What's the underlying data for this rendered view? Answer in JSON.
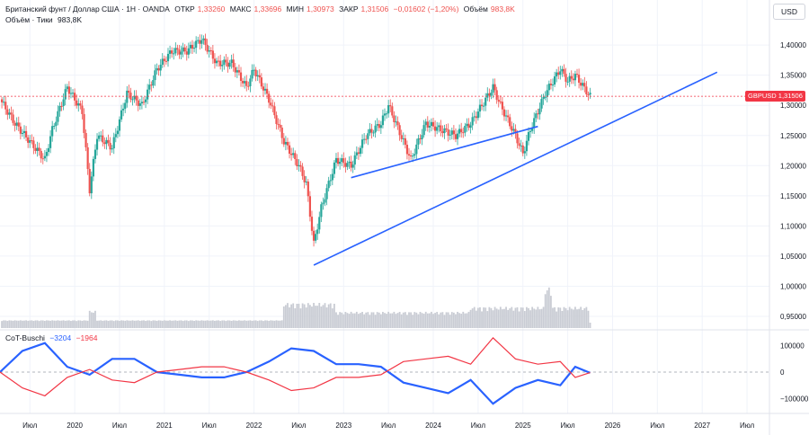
{
  "header": {
    "symbol": "Британский фунт / Доллар США · 1Н · OANDA",
    "open_label": "ОТКР",
    "open": "1,33260",
    "high_label": "МАКС",
    "high": "1,33696",
    "low_label": "МИН",
    "low": "1,30973",
    "close_label": "ЗАКР",
    "close": "1,31506",
    "change": "−0,01602 (−1,20%)",
    "volume_label": "Объём",
    "volume": "983,8K"
  },
  "volume_legend": {
    "label": "Объём · Тики",
    "value": "983,8K"
  },
  "cot_legend": {
    "label": "CoT-Buschi",
    "v1": "−3204",
    "v2": "−1964"
  },
  "currency_button": "USD",
  "price_tag": {
    "symbol": "GBPUSD",
    "value": "1,31506"
  },
  "colors": {
    "up": "#26a69a",
    "down": "#ef5350",
    "trendline": "#2962ff",
    "cot_blue": "#2962ff",
    "cot_red": "#f23645",
    "volume": "#c9ccd4"
  },
  "chart_data": [
    {
      "type": "candlestick",
      "title": "Британский фунт / Доллар США · 1Н · OANDA",
      "y_axis_ticks": [
        "1,40000",
        "1,35000",
        "1,30000",
        "1,25000",
        "1,20000",
        "1,15000",
        "1,10000",
        "1,05000",
        "1,00000",
        "0,95000"
      ],
      "ylim": [
        0.95,
        1.43
      ],
      "x_axis_ticks": [
        "Июл",
        "2020",
        "Июл",
        "2021",
        "Июл",
        "2022",
        "Июл",
        "2023",
        "Июл",
        "2024",
        "Июл",
        "2025",
        "Июл",
        "2026",
        "Июл",
        "2027",
        "Июл"
      ],
      "xlim": [
        "2019-03",
        "2027-10"
      ],
      "close_path": [
        [
          "2019-03",
          1.31
        ],
        [
          "2019-05",
          1.27
        ],
        [
          "2019-07",
          1.24
        ],
        [
          "2019-09",
          1.21
        ],
        [
          "2019-10",
          1.26
        ],
        [
          "2019-12",
          1.33
        ],
        [
          "2020-02",
          1.29
        ],
        [
          "2020-03",
          1.16
        ],
        [
          "2020-04",
          1.25
        ],
        [
          "2020-06",
          1.23
        ],
        [
          "2020-08",
          1.32
        ],
        [
          "2020-10",
          1.3
        ],
        [
          "2020-12",
          1.36
        ],
        [
          "2021-02",
          1.39
        ],
        [
          "2021-04",
          1.39
        ],
        [
          "2021-06",
          1.41
        ],
        [
          "2021-08",
          1.37
        ],
        [
          "2021-10",
          1.37
        ],
        [
          "2021-12",
          1.33
        ],
        [
          "2022-01",
          1.36
        ],
        [
          "2022-03",
          1.31
        ],
        [
          "2022-05",
          1.24
        ],
        [
          "2022-07",
          1.2
        ],
        [
          "2022-08",
          1.17
        ],
        [
          "2022-09",
          1.07
        ],
        [
          "2022-10",
          1.13
        ],
        [
          "2022-12",
          1.21
        ],
        [
          "2023-02",
          1.2
        ],
        [
          "2023-04",
          1.25
        ],
        [
          "2023-06",
          1.27
        ],
        [
          "2023-07",
          1.3
        ],
        [
          "2023-08",
          1.27
        ],
        [
          "2023-10",
          1.21
        ],
        [
          "2023-12",
          1.27
        ],
        [
          "2024-02",
          1.26
        ],
        [
          "2024-04",
          1.25
        ],
        [
          "2024-06",
          1.27
        ],
        [
          "2024-07",
          1.29
        ],
        [
          "2024-09",
          1.33
        ],
        [
          "2024-10",
          1.3
        ],
        [
          "2024-12",
          1.25
        ],
        [
          "2025-01",
          1.22
        ],
        [
          "2025-02",
          1.26
        ],
        [
          "2025-04",
          1.32
        ],
        [
          "2025-06",
          1.36
        ],
        [
          "2025-07",
          1.34
        ],
        [
          "2025-08",
          1.35
        ],
        [
          "2025-10",
          1.315
        ]
      ],
      "trendlines": [
        {
          "from": [
            "2023-02",
            1.18
          ],
          "to": [
            "2025-03",
            1.265
          ]
        },
        {
          "from": [
            "2022-09",
            1.035
          ],
          "to": [
            "2027-03",
            1.355
          ]
        }
      ],
      "last_price": 1.31506
    },
    {
      "type": "bar",
      "title": "Объём · Тики",
      "note": "volume histogram; heights relative",
      "segments": [
        {
          "from": "2019-03",
          "to": "2022-05",
          "level": 0.12
        },
        {
          "from": "2020-03",
          "to": "2020-04",
          "level": 0.6
        },
        {
          "from": "2022-05",
          "to": "2022-12",
          "level": 1.0
        },
        {
          "from": "2022-12",
          "to": "2024-06",
          "level": 0.55
        },
        {
          "from": "2024-06",
          "to": "2025-10",
          "level": 0.8
        },
        {
          "from": "2025-04",
          "to": "2025-05",
          "level": 1.8
        }
      ]
    },
    {
      "type": "line",
      "title": "CoT-Buschi",
      "y_axis_ticks": [
        "100000",
        "0",
        "−100000"
      ],
      "ylim": [
        -150000,
        150000
      ],
      "series": [
        {
          "name": "−3204",
          "color": "#2962ff",
          "points": [
            [
              "2019-03",
              0
            ],
            [
              "2019-06",
              80000
            ],
            [
              "2019-09",
              110000
            ],
            [
              "2019-12",
              20000
            ],
            [
              "2020-03",
              -10000
            ],
            [
              "2020-06",
              50000
            ],
            [
              "2020-09",
              50000
            ],
            [
              "2020-12",
              0
            ],
            [
              "2021-03",
              -10000
            ],
            [
              "2021-06",
              -20000
            ],
            [
              "2021-09",
              -20000
            ],
            [
              "2021-12",
              0
            ],
            [
              "2022-03",
              40000
            ],
            [
              "2022-06",
              90000
            ],
            [
              "2022-09",
              80000
            ],
            [
              "2022-12",
              30000
            ],
            [
              "2023-03",
              30000
            ],
            [
              "2023-06",
              20000
            ],
            [
              "2023-09",
              -40000
            ],
            [
              "2023-12",
              -60000
            ],
            [
              "2024-03",
              -80000
            ],
            [
              "2024-06",
              -30000
            ],
            [
              "2024-09",
              -120000
            ],
            [
              "2024-12",
              -60000
            ],
            [
              "2025-03",
              -30000
            ],
            [
              "2025-06",
              -50000
            ],
            [
              "2025-08",
              20000
            ],
            [
              "2025-10",
              -3204
            ]
          ]
        },
        {
          "name": "−1964",
          "color": "#f23645",
          "points": [
            [
              "2019-03",
              0
            ],
            [
              "2019-06",
              -60000
            ],
            [
              "2019-09",
              -90000
            ],
            [
              "2019-12",
              -20000
            ],
            [
              "2020-03",
              10000
            ],
            [
              "2020-06",
              -30000
            ],
            [
              "2020-09",
              -40000
            ],
            [
              "2020-12",
              0
            ],
            [
              "2021-03",
              10000
            ],
            [
              "2021-06",
              20000
            ],
            [
              "2021-09",
              20000
            ],
            [
              "2021-12",
              0
            ],
            [
              "2022-03",
              -30000
            ],
            [
              "2022-06",
              -70000
            ],
            [
              "2022-09",
              -60000
            ],
            [
              "2022-12",
              -20000
            ],
            [
              "2023-03",
              -20000
            ],
            [
              "2023-06",
              -10000
            ],
            [
              "2023-09",
              40000
            ],
            [
              "2023-12",
              50000
            ],
            [
              "2024-03",
              60000
            ],
            [
              "2024-06",
              30000
            ],
            [
              "2024-09",
              130000
            ],
            [
              "2024-12",
              50000
            ],
            [
              "2025-03",
              30000
            ],
            [
              "2025-06",
              40000
            ],
            [
              "2025-08",
              -20000
            ],
            [
              "2025-10",
              -1964
            ]
          ]
        }
      ]
    }
  ]
}
